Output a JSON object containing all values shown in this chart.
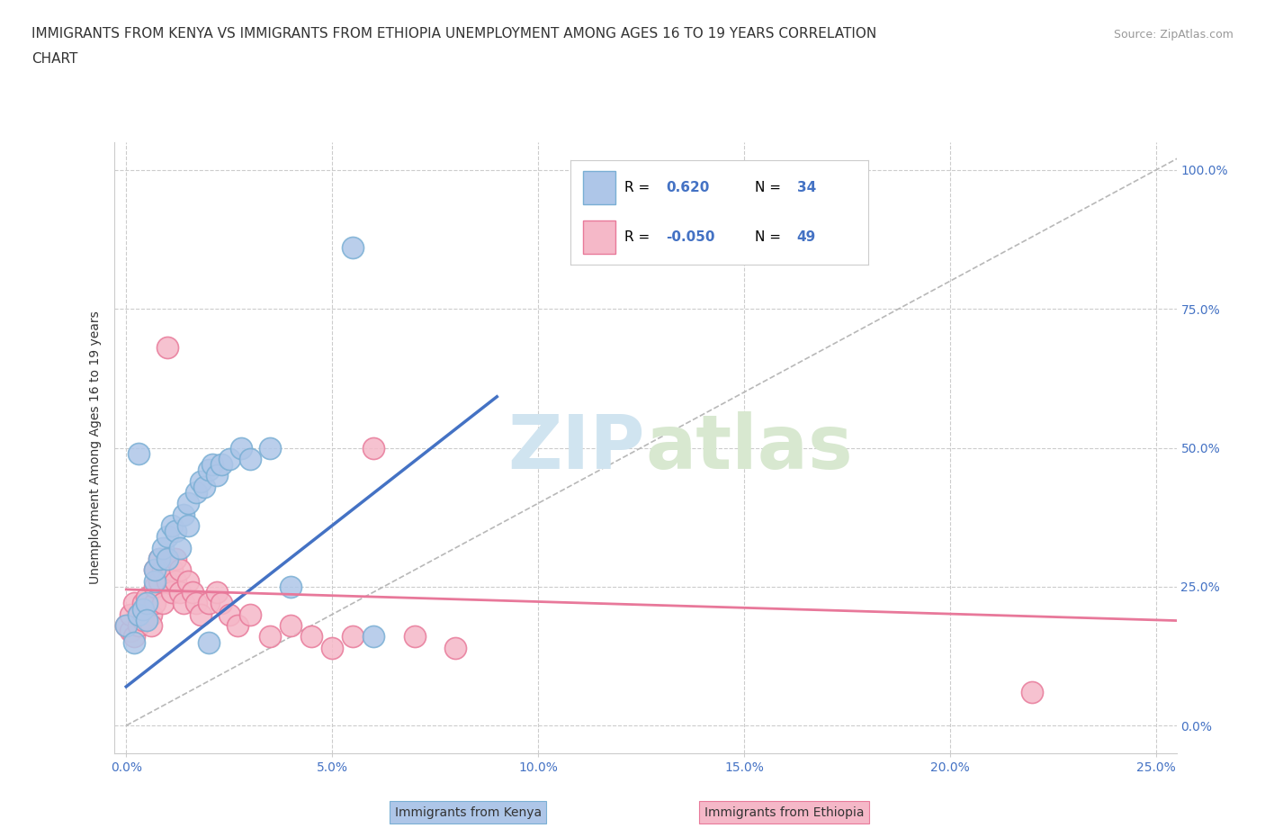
{
  "title_line1": "IMMIGRANTS FROM KENYA VS IMMIGRANTS FROM ETHIOPIA UNEMPLOYMENT AMONG AGES 16 TO 19 YEARS CORRELATION",
  "title_line2": "CHART",
  "source_text": "Source: ZipAtlas.com",
  "ylabel": "Unemployment Among Ages 16 to 19 years",
  "xlim": [
    -0.003,
    0.255
  ],
  "ylim": [
    -0.05,
    1.05
  ],
  "xtick_labels": [
    "0.0%",
    "5.0%",
    "10.0%",
    "15.0%",
    "20.0%",
    "25.0%"
  ],
  "xtick_vals": [
    0.0,
    0.05,
    0.1,
    0.15,
    0.2,
    0.25
  ],
  "ytick_labels": [
    "0.0%",
    "25.0%",
    "50.0%",
    "75.0%",
    "100.0%"
  ],
  "ytick_vals": [
    0.0,
    0.25,
    0.5,
    0.75,
    1.0
  ],
  "kenya_color": "#aec6e8",
  "ethiopia_color": "#f5b8c8",
  "kenya_edge_color": "#7aafd4",
  "ethiopia_edge_color": "#e87a9a",
  "kenya_R": "0.620",
  "kenya_N": "34",
  "ethiopia_R": "-0.050",
  "ethiopia_N": "49",
  "kenya_line_color": "#4472c4",
  "ethiopia_line_color": "#e8789a",
  "diagonal_color": "#b8b8b8",
  "watermark_text": "ZIPatlas",
  "watermark_color": "#d0e4f0",
  "background_color": "#ffffff",
  "kenya_scatter": [
    [
      0.0,
      0.18
    ],
    [
      0.002,
      0.15
    ],
    [
      0.003,
      0.2
    ],
    [
      0.004,
      0.21
    ],
    [
      0.005,
      0.22
    ],
    [
      0.005,
      0.19
    ],
    [
      0.007,
      0.26
    ],
    [
      0.007,
      0.28
    ],
    [
      0.008,
      0.3
    ],
    [
      0.009,
      0.32
    ],
    [
      0.01,
      0.34
    ],
    [
      0.01,
      0.3
    ],
    [
      0.011,
      0.36
    ],
    [
      0.012,
      0.35
    ],
    [
      0.013,
      0.32
    ],
    [
      0.014,
      0.38
    ],
    [
      0.015,
      0.4
    ],
    [
      0.015,
      0.36
    ],
    [
      0.017,
      0.42
    ],
    [
      0.018,
      0.44
    ],
    [
      0.019,
      0.43
    ],
    [
      0.02,
      0.46
    ],
    [
      0.021,
      0.47
    ],
    [
      0.022,
      0.45
    ],
    [
      0.023,
      0.47
    ],
    [
      0.025,
      0.48
    ],
    [
      0.028,
      0.5
    ],
    [
      0.03,
      0.48
    ],
    [
      0.035,
      0.5
    ],
    [
      0.04,
      0.25
    ],
    [
      0.055,
      0.86
    ],
    [
      0.003,
      0.49
    ],
    [
      0.06,
      0.16
    ],
    [
      0.02,
      0.15
    ]
  ],
  "ethiopia_scatter": [
    [
      0.0,
      0.18
    ],
    [
      0.001,
      0.17
    ],
    [
      0.001,
      0.2
    ],
    [
      0.002,
      0.16
    ],
    [
      0.002,
      0.22
    ],
    [
      0.003,
      0.18
    ],
    [
      0.003,
      0.2
    ],
    [
      0.004,
      0.19
    ],
    [
      0.004,
      0.22
    ],
    [
      0.005,
      0.21
    ],
    [
      0.005,
      0.23
    ],
    [
      0.006,
      0.2
    ],
    [
      0.006,
      0.18
    ],
    [
      0.007,
      0.22
    ],
    [
      0.007,
      0.25
    ],
    [
      0.007,
      0.28
    ],
    [
      0.008,
      0.26
    ],
    [
      0.008,
      0.3
    ],
    [
      0.009,
      0.28
    ],
    [
      0.009,
      0.22
    ],
    [
      0.01,
      0.3
    ],
    [
      0.01,
      0.26
    ],
    [
      0.011,
      0.28
    ],
    [
      0.011,
      0.24
    ],
    [
      0.012,
      0.26
    ],
    [
      0.012,
      0.3
    ],
    [
      0.013,
      0.28
    ],
    [
      0.013,
      0.24
    ],
    [
      0.014,
      0.22
    ],
    [
      0.015,
      0.26
    ],
    [
      0.016,
      0.24
    ],
    [
      0.017,
      0.22
    ],
    [
      0.018,
      0.2
    ],
    [
      0.02,
      0.22
    ],
    [
      0.022,
      0.24
    ],
    [
      0.023,
      0.22
    ],
    [
      0.025,
      0.2
    ],
    [
      0.027,
      0.18
    ],
    [
      0.03,
      0.2
    ],
    [
      0.035,
      0.16
    ],
    [
      0.04,
      0.18
    ],
    [
      0.045,
      0.16
    ],
    [
      0.05,
      0.14
    ],
    [
      0.055,
      0.16
    ],
    [
      0.06,
      0.5
    ],
    [
      0.07,
      0.16
    ],
    [
      0.08,
      0.14
    ],
    [
      0.22,
      0.06
    ],
    [
      0.01,
      0.68
    ]
  ],
  "kenya_line_intercept": 0.07,
  "kenya_line_slope": 5.8,
  "kenya_line_xrange": [
    0.0,
    0.09
  ],
  "ethiopia_line_intercept": 0.245,
  "ethiopia_line_slope": -0.22,
  "ethiopia_line_xrange": [
    0.0,
    0.255
  ]
}
